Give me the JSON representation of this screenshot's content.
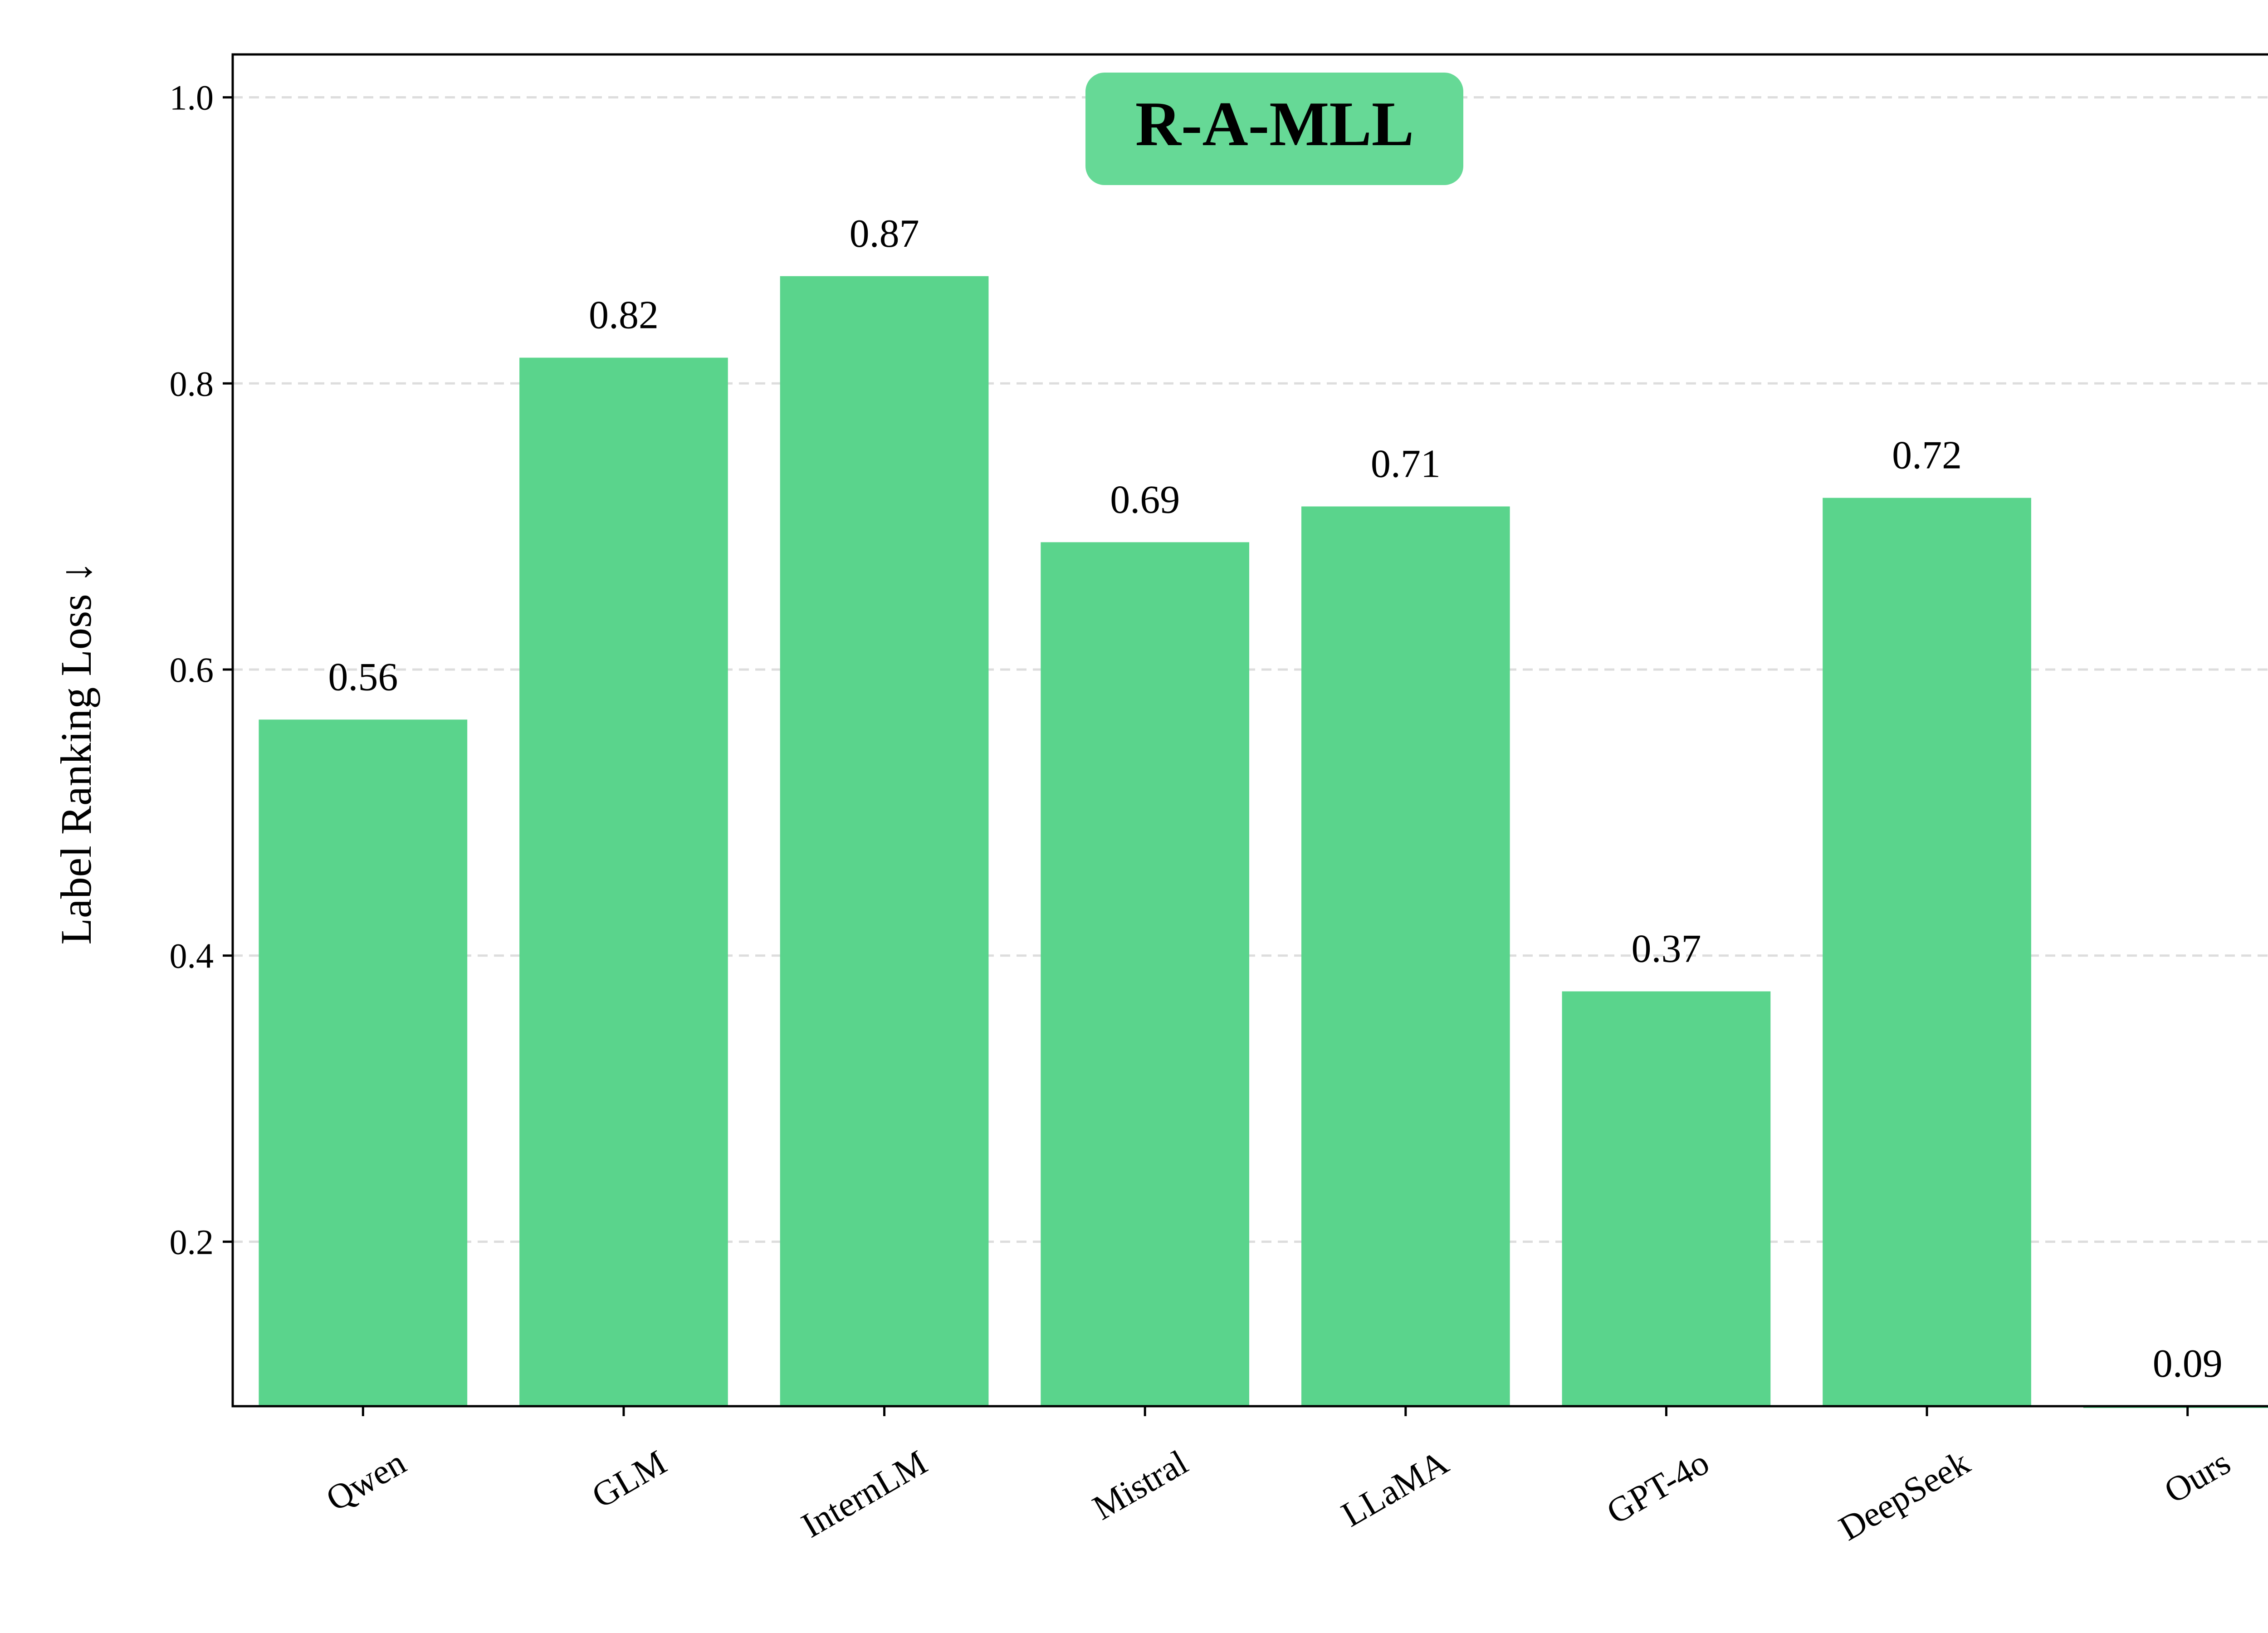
{
  "chart_data": {
    "type": "bar",
    "title": "R-A-MLL",
    "ylabel": "Label Ranking Loss ↓",
    "xlabel": "",
    "categories": [
      "Qwen",
      "GLM",
      "InternLM",
      "Mistral",
      "LLaMA",
      "GPT-4o",
      "DeepSeek",
      "Ours"
    ],
    "values": [
      0.565,
      0.818,
      0.875,
      0.689,
      0.714,
      0.375,
      0.72,
      0.085
    ],
    "value_labels": [
      "0.56",
      "0.82",
      "0.87",
      "0.69",
      "0.71",
      "0.37",
      "0.72",
      "0.09"
    ],
    "ylim": [
      0.085,
      1.03
    ],
    "yticks": [
      0.2,
      0.4,
      0.6,
      0.8,
      1.0
    ],
    "ytick_labels": [
      "0.2",
      "0.4",
      "0.6",
      "0.8",
      "1.0"
    ],
    "grid": true,
    "bar_color": "#5ad48c",
    "title_box_color": "#66d996"
  }
}
